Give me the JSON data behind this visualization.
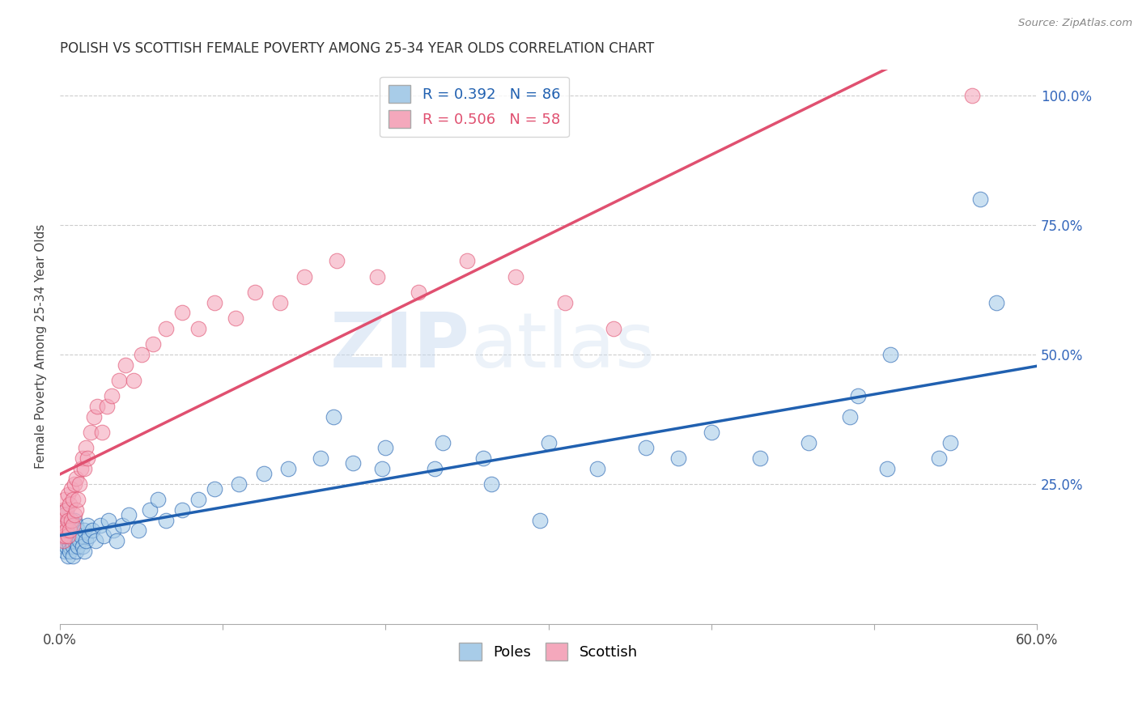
{
  "title": "POLISH VS SCOTTISH FEMALE POVERTY AMONG 25-34 YEAR OLDS CORRELATION CHART",
  "source": "Source: ZipAtlas.com",
  "ylabel": "Female Poverty Among 25-34 Year Olds",
  "xlim": [
    0.0,
    0.6
  ],
  "ylim": [
    -0.02,
    1.05
  ],
  "poles_R": 0.392,
  "poles_N": 86,
  "scottish_R": 0.506,
  "scottish_N": 58,
  "poles_color": "#a8cce8",
  "scottish_color": "#f4a8bc",
  "poles_line_color": "#2060b0",
  "scottish_line_color": "#e05070",
  "watermark": "ZIPAtlas",
  "poles_x": [
    0.001,
    0.001,
    0.001,
    0.001,
    0.002,
    0.002,
    0.002,
    0.002,
    0.003,
    0.003,
    0.003,
    0.004,
    0.004,
    0.004,
    0.005,
    0.005,
    0.005,
    0.005,
    0.006,
    0.006,
    0.006,
    0.007,
    0.007,
    0.007,
    0.008,
    0.008,
    0.008,
    0.009,
    0.009,
    0.01,
    0.01,
    0.01,
    0.011,
    0.011,
    0.012,
    0.013,
    0.014,
    0.015,
    0.015,
    0.016,
    0.017,
    0.018,
    0.02,
    0.022,
    0.025,
    0.027,
    0.03,
    0.033,
    0.035,
    0.038,
    0.042,
    0.048,
    0.055,
    0.06,
    0.065,
    0.075,
    0.085,
    0.095,
    0.11,
    0.125,
    0.14,
    0.16,
    0.18,
    0.2,
    0.23,
    0.26,
    0.3,
    0.33,
    0.36,
    0.4,
    0.43,
    0.46,
    0.49,
    0.51,
    0.54,
    0.565,
    0.575,
    0.547,
    0.508,
    0.485,
    0.38,
    0.295,
    0.265,
    0.235,
    0.198,
    0.168
  ],
  "poles_y": [
    0.15,
    0.14,
    0.17,
    0.18,
    0.13,
    0.16,
    0.15,
    0.19,
    0.12,
    0.14,
    0.17,
    0.13,
    0.16,
    0.2,
    0.11,
    0.15,
    0.14,
    0.18,
    0.13,
    0.16,
    0.12,
    0.14,
    0.17,
    0.15,
    0.13,
    0.16,
    0.11,
    0.14,
    0.18,
    0.12,
    0.15,
    0.17,
    0.13,
    0.16,
    0.14,
    0.15,
    0.13,
    0.12,
    0.16,
    0.14,
    0.17,
    0.15,
    0.16,
    0.14,
    0.17,
    0.15,
    0.18,
    0.16,
    0.14,
    0.17,
    0.19,
    0.16,
    0.2,
    0.22,
    0.18,
    0.2,
    0.22,
    0.24,
    0.25,
    0.27,
    0.28,
    0.3,
    0.29,
    0.32,
    0.28,
    0.3,
    0.33,
    0.28,
    0.32,
    0.35,
    0.3,
    0.33,
    0.42,
    0.5,
    0.3,
    0.8,
    0.6,
    0.33,
    0.28,
    0.38,
    0.3,
    0.18,
    0.25,
    0.33,
    0.28,
    0.38
  ],
  "scottish_x": [
    0.001,
    0.001,
    0.001,
    0.002,
    0.002,
    0.002,
    0.003,
    0.003,
    0.003,
    0.004,
    0.004,
    0.005,
    0.005,
    0.005,
    0.006,
    0.006,
    0.007,
    0.007,
    0.008,
    0.008,
    0.009,
    0.009,
    0.01,
    0.01,
    0.011,
    0.012,
    0.013,
    0.014,
    0.015,
    0.016,
    0.017,
    0.019,
    0.021,
    0.023,
    0.026,
    0.029,
    0.032,
    0.036,
    0.04,
    0.045,
    0.05,
    0.057,
    0.065,
    0.075,
    0.085,
    0.095,
    0.108,
    0.12,
    0.135,
    0.15,
    0.17,
    0.195,
    0.22,
    0.25,
    0.28,
    0.31,
    0.34,
    0.56
  ],
  "scottish_y": [
    0.15,
    0.18,
    0.16,
    0.14,
    0.17,
    0.2,
    0.15,
    0.19,
    0.22,
    0.16,
    0.2,
    0.15,
    0.18,
    0.23,
    0.16,
    0.21,
    0.18,
    0.24,
    0.17,
    0.22,
    0.19,
    0.25,
    0.2,
    0.26,
    0.22,
    0.25,
    0.28,
    0.3,
    0.28,
    0.32,
    0.3,
    0.35,
    0.38,
    0.4,
    0.35,
    0.4,
    0.42,
    0.45,
    0.48,
    0.45,
    0.5,
    0.52,
    0.55,
    0.58,
    0.55,
    0.6,
    0.57,
    0.62,
    0.6,
    0.65,
    0.68,
    0.65,
    0.62,
    0.68,
    0.65,
    0.6,
    0.55,
    1.0
  ]
}
